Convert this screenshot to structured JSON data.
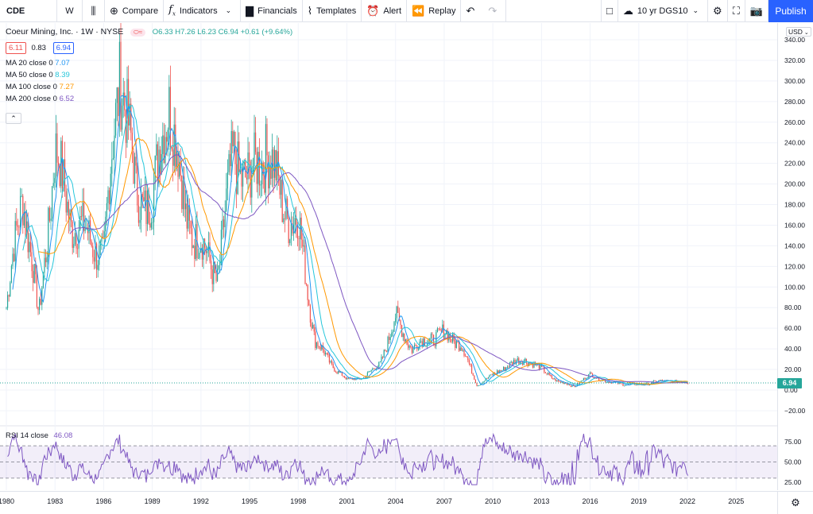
{
  "toolbar": {
    "symbol": "CDE",
    "interval": "W",
    "compare": "Compare",
    "indicators": "Indicators",
    "financials": "Financials",
    "templates": "Templates",
    "alert": "Alert",
    "replay": "Replay",
    "compare_symbol": "10 yr DGS10",
    "publish": "Publish"
  },
  "legend": {
    "title": "Coeur Mining, Inc. · 1W · NYSE",
    "ohlc": "O6.33 H7.26 L6.23 C6.94 +0.61 (+9.64%)",
    "bid": "6.11",
    "spread": "0.83",
    "ask": "6.94",
    "ma": [
      {
        "label": "MA 20 close 0",
        "value": "7.07",
        "color": "#2196f3"
      },
      {
        "label": "MA 50 close 0",
        "value": "8.39",
        "color": "#26c6da"
      },
      {
        "label": "MA 100 close 0",
        "value": "7.27",
        "color": "#ff9800"
      },
      {
        "label": "MA 200 close 0",
        "value": "6.52",
        "color": "#7e57c2"
      }
    ],
    "collapse": "^"
  },
  "rsi": {
    "label": "RSI 14 close",
    "value": "46.08",
    "levels": [
      70,
      50,
      30
    ]
  },
  "price_axis": {
    "currency": "USD",
    "ticks": [
      340,
      320,
      300,
      280,
      260,
      240,
      220,
      200,
      180,
      160,
      140,
      120,
      100,
      80,
      60,
      40,
      20,
      0,
      -20
    ],
    "tick_labels": [
      "340.00",
      "320.00",
      "300.00",
      "280.00",
      "260.00",
      "240.00",
      "220.00",
      "200.00",
      "180.00",
      "160.00",
      "140.00",
      "120.00",
      "100.00",
      "80.00",
      "60.00",
      "40.00",
      "20.00",
      "0.00",
      "−20.00"
    ],
    "current": "6.94"
  },
  "rsi_axis": {
    "ticks": [
      "75.00",
      "50.00",
      "25.00"
    ]
  },
  "time_axis": {
    "labels": [
      "1980",
      "1983",
      "1986",
      "1989",
      "1992",
      "1995",
      "1998",
      "2001",
      "2004",
      "2007",
      "2010",
      "2013",
      "2016",
      "2019",
      "2022",
      "2025"
    ]
  },
  "colors": {
    "up": "#26a69a",
    "down": "#ef5350",
    "ma20": "#2196f3",
    "ma50": "#26c6da",
    "ma100": "#ff9800",
    "ma200": "#7e57c2",
    "rsi": "#7e57c2"
  },
  "chart_data": {
    "type": "line",
    "title": "Coeur Mining, Inc. · 1W · NYSE",
    "x": [
      1980,
      1981,
      1982,
      1983,
      1984,
      1985,
      1986,
      1987,
      1988,
      1989,
      1990,
      1991,
      1992,
      1993,
      1994,
      1995,
      1996,
      1997,
      1998,
      1999,
      2000,
      2001,
      2002,
      2003,
      2004,
      2005,
      2006,
      2007,
      2008,
      2009,
      2010,
      2011,
      2012,
      2013,
      2014,
      2015,
      2016,
      2017,
      2018,
      2019,
      2020,
      2021,
      2022
    ],
    "series": [
      {
        "name": "CDE",
        "values": [
          80,
          195,
          70,
          230,
          165,
          150,
          130,
          320,
          190,
          180,
          290,
          170,
          140,
          110,
          230,
          200,
          240,
          180,
          160,
          50,
          25,
          10,
          12,
          25,
          70,
          40,
          50,
          55,
          45,
          5,
          15,
          25,
          30,
          20,
          8,
          4,
          15,
          8,
          6,
          5,
          8,
          9,
          6.94
        ]
      },
      {
        "name": "MA 200 close 0",
        "values": [
          null,
          null,
          null,
          null,
          110,
          130,
          145,
          160,
          170,
          185,
          210,
          205,
          195,
          185,
          185,
          185,
          185,
          185,
          170,
          120,
          70,
          35,
          15,
          18,
          30,
          38,
          45,
          46,
          45,
          40,
          30,
          25,
          22,
          20,
          14,
          10,
          8,
          8,
          7,
          6,
          6,
          6,
          6.52
        ]
      }
    ],
    "ylim": [
      -20,
      340
    ]
  }
}
